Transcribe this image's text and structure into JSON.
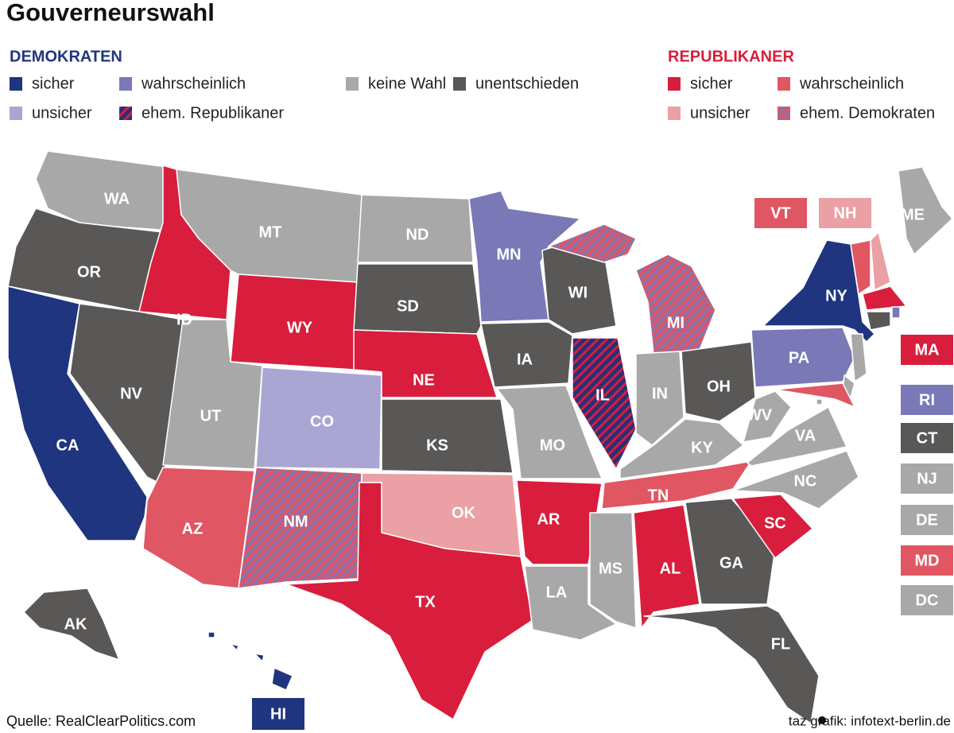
{
  "title": "Gouverneurswahl",
  "legend": {
    "democrats": {
      "heading": "DEMOKRATEN",
      "color": "#1f3580",
      "items": [
        {
          "label": "sicher",
          "color": "#1f3580"
        },
        {
          "label": "wahrscheinlich",
          "color": "#7b78b8"
        },
        {
          "label": "unsicher",
          "color": "#a9a6d4"
        },
        {
          "label": "ehem. Republikaner",
          "color": "#2a2f78",
          "stripe": "#d81e3c"
        }
      ]
    },
    "neutral": {
      "items": [
        {
          "label": "keine Wahl",
          "color": "#a8a8a8"
        },
        {
          "label": "unentschieden",
          "color": "#5a5857"
        }
      ]
    },
    "republicans": {
      "heading": "REPUBLIKANER",
      "color": "#d81e3c",
      "items": [
        {
          "label": "sicher",
          "color": "#d81e3c"
        },
        {
          "label": "wahrscheinlich",
          "color": "#e05662"
        },
        {
          "label": "unsicher",
          "color": "#eaa0a4"
        },
        {
          "label": "ehem. Demokraten",
          "color": "#d8566a",
          "stripe": "#7b78b8"
        }
      ]
    }
  },
  "states": [
    {
      "label": "WA",
      "color": "#a8a8a8"
    },
    {
      "label": "OR",
      "color": "#5a5857"
    },
    {
      "label": "CA",
      "color": "#1f3580"
    },
    {
      "label": "ID",
      "color": "#d81e3c"
    },
    {
      "label": "NV",
      "color": "#5a5857"
    },
    {
      "label": "MT",
      "color": "#a8a8a8"
    },
    {
      "label": "WY",
      "color": "#d81e3c"
    },
    {
      "label": "UT",
      "color": "#a8a8a8"
    },
    {
      "label": "AZ",
      "color": "#e05662"
    },
    {
      "label": "CO",
      "color": "#a9a6d4"
    },
    {
      "label": "NM",
      "color": "#d8566a",
      "stripe": "#7b78b8"
    },
    {
      "label": "ND",
      "color": "#a8a8a8"
    },
    {
      "label": "SD",
      "color": "#5a5857"
    },
    {
      "label": "NE",
      "color": "#d81e3c"
    },
    {
      "label": "KS",
      "color": "#5a5857"
    },
    {
      "label": "OK",
      "color": "#eaa0a4"
    },
    {
      "label": "TX",
      "color": "#d81e3c"
    },
    {
      "label": "MN",
      "color": "#7b78b8"
    },
    {
      "label": "IA",
      "color": "#5a5857"
    },
    {
      "label": "MO",
      "color": "#a8a8a8"
    },
    {
      "label": "AR",
      "color": "#d81e3c"
    },
    {
      "label": "LA",
      "color": "#a8a8a8"
    },
    {
      "label": "WI",
      "color": "#5a5857"
    },
    {
      "label": "IL",
      "color": "#2a2f78",
      "stripe": "#d81e3c"
    },
    {
      "label": "MI",
      "color": "#d8566a",
      "stripe": "#7b78b8"
    },
    {
      "label": "IN",
      "color": "#a8a8a8"
    },
    {
      "label": "OH",
      "color": "#5a5857"
    },
    {
      "label": "KY",
      "color": "#a8a8a8"
    },
    {
      "label": "TN",
      "color": "#e05662"
    },
    {
      "label": "MS",
      "color": "#a8a8a8"
    },
    {
      "label": "AL",
      "color": "#d81e3c"
    },
    {
      "label": "GA",
      "color": "#5a5857"
    },
    {
      "label": "FL",
      "color": "#5a5857"
    },
    {
      "label": "SC",
      "color": "#d81e3c"
    },
    {
      "label": "NC",
      "color": "#a8a8a8"
    },
    {
      "label": "VA",
      "color": "#a8a8a8"
    },
    {
      "label": "WV",
      "color": "#a8a8a8"
    },
    {
      "label": "PA",
      "color": "#7b78b8"
    },
    {
      "label": "NY",
      "color": "#1f3580"
    },
    {
      "label": "ME",
      "color": "#a8a8a8"
    },
    {
      "label": "AK",
      "color": "#5a5857"
    },
    {
      "label": "HI",
      "color": "#1f3580"
    }
  ],
  "boxes": [
    {
      "label": "VT",
      "color": "#e05662"
    },
    {
      "label": "NH",
      "color": "#eaa0a4"
    },
    {
      "label": "MA",
      "color": "#d81e3c"
    },
    {
      "label": "RI",
      "color": "#7b78b8"
    },
    {
      "label": "CT",
      "color": "#5a5857"
    },
    {
      "label": "NJ",
      "color": "#a8a8a8"
    },
    {
      "label": "DE",
      "color": "#a8a8a8"
    },
    {
      "label": "MD",
      "color": "#e05662"
    },
    {
      "label": "DC",
      "color": "#a8a8a8"
    }
  ],
  "source": "Quelle: RealClearPolitics.com",
  "credit": "taz grafik: infotext-berlin.de"
}
